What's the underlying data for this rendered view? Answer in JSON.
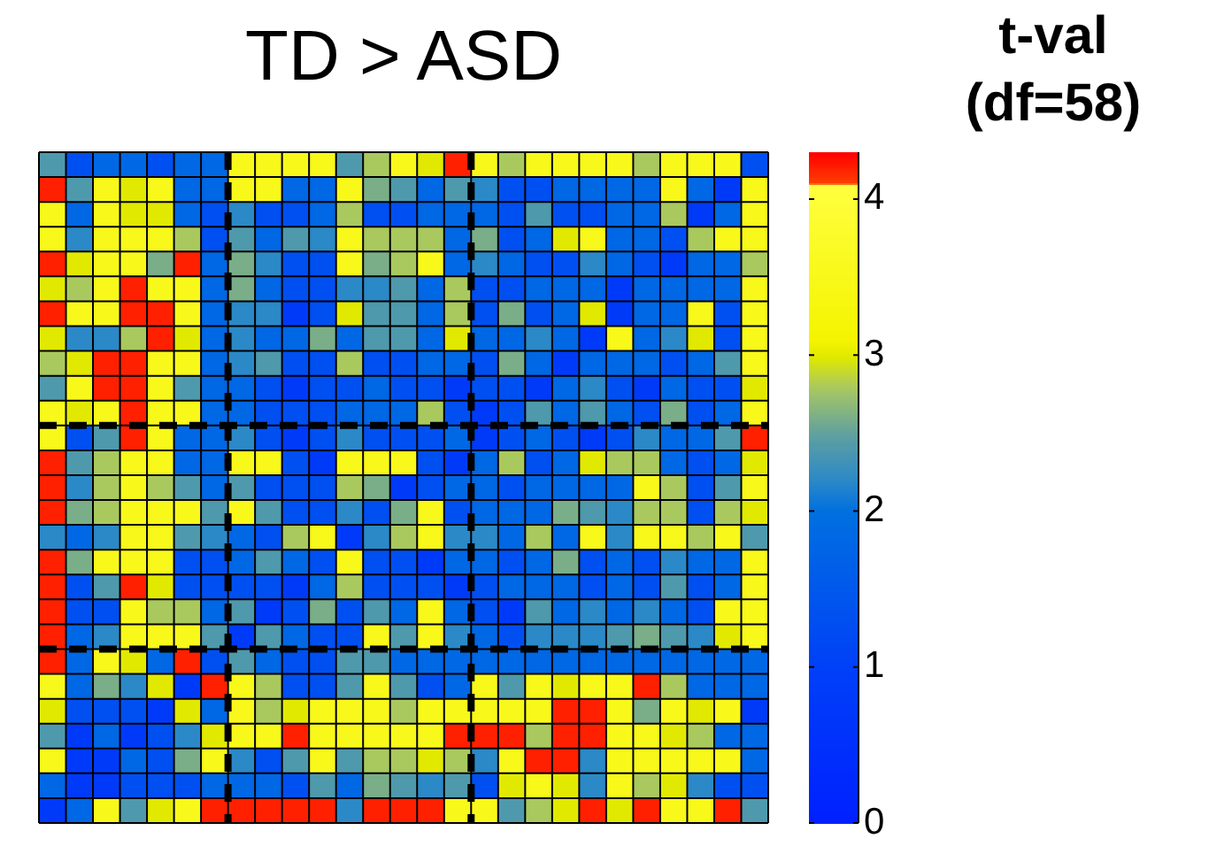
{
  "chart_data": {
    "type": "heatmap",
    "title": "TD > ASD",
    "clabel": "t-val (df=58)",
    "categories": [
      null,
      null,
      null,
      null,
      null,
      null,
      null,
      null,
      null,
      null,
      null,
      null,
      null,
      null,
      null,
      null,
      null,
      null,
      null,
      null,
      null,
      null,
      null,
      null,
      null,
      null,
      null
    ],
    "y_categories": [
      null,
      null,
      null,
      null,
      null,
      null,
      null,
      null,
      null,
      null,
      null,
      null,
      null,
      null,
      null,
      null,
      null,
      null,
      null,
      null,
      null,
      null,
      null,
      null,
      null,
      null,
      null
    ],
    "clim": [
      0,
      4.3
    ],
    "cticks": [
      0,
      1,
      2,
      3,
      4
    ],
    "cells": [
      [
        2.4,
        1.3,
        1.8,
        1.8,
        1.3,
        1.8,
        1.8,
        3.5,
        3.5,
        3.5,
        3.5,
        2.4,
        2.8,
        3.5,
        3,
        4.2,
        3.5,
        2.8,
        3.5,
        3.5,
        3.5,
        3.5,
        2.8,
        3.5,
        3.5,
        3.5,
        1.3
      ],
      [
        4.2,
        2.4,
        3.5,
        3,
        3.5,
        1.8,
        1.8,
        3.5,
        3.5,
        1.8,
        1.8,
        3.5,
        2.6,
        2.4,
        1.8,
        2.4,
        2.2,
        1.3,
        1.3,
        1.8,
        1.8,
        1.8,
        1.8,
        3.5,
        1.8,
        0.8,
        3.5
      ],
      [
        3.5,
        1.8,
        3.5,
        3,
        3,
        1.8,
        1.3,
        2.2,
        1.3,
        1.3,
        1.8,
        2.8,
        1.3,
        1.3,
        1.8,
        1.8,
        1.8,
        1.3,
        2.4,
        1.3,
        1.3,
        1.8,
        1.8,
        2.8,
        0.8,
        1.8,
        3.5
      ],
      [
        3.5,
        2.2,
        3.5,
        3.5,
        3.5,
        2.8,
        1.3,
        2.4,
        1.8,
        2.4,
        2.2,
        3.5,
        2.8,
        2.8,
        2.8,
        1.8,
        2.6,
        1.3,
        1.8,
        3,
        3.5,
        1.8,
        1.8,
        1.3,
        2.8,
        3.5,
        3.5
      ],
      [
        4.2,
        3,
        3.5,
        3.5,
        2.6,
        4.2,
        1.8,
        2.6,
        2.2,
        1.3,
        1.3,
        3.5,
        2.6,
        2.8,
        3.5,
        1.8,
        2.2,
        1.8,
        1.3,
        1.3,
        2.2,
        1.8,
        1.3,
        0.8,
        1.8,
        1.8,
        2.8
      ],
      [
        3,
        2.8,
        3.5,
        4.2,
        3.5,
        3.5,
        1.8,
        2.6,
        1.8,
        1.3,
        1.3,
        2.2,
        2.2,
        2.4,
        1.8,
        2.8,
        1.3,
        1.3,
        1.8,
        1.8,
        1.8,
        0.8,
        1.8,
        1.8,
        1.8,
        1.8,
        3.5
      ],
      [
        4.2,
        3.5,
        3.5,
        4.2,
        4.2,
        3.5,
        1.8,
        2.2,
        2.2,
        0.8,
        1.3,
        3,
        2.4,
        2.4,
        1.8,
        2.8,
        1.3,
        2.6,
        1.3,
        1.8,
        3,
        0.8,
        1.8,
        1.8,
        3.5,
        1.3,
        3.5
      ],
      [
        3,
        2.2,
        2.2,
        2.8,
        4.2,
        3,
        1.8,
        2.2,
        1.8,
        1.8,
        2.6,
        1.8,
        2.4,
        2.4,
        1.8,
        3,
        1.8,
        1.8,
        2.2,
        1.8,
        0.8,
        3.5,
        1.8,
        2.2,
        3,
        1.3,
        3.5
      ],
      [
        2.8,
        3,
        4.2,
        4.2,
        3.5,
        3.5,
        1.8,
        2.2,
        2.4,
        1.3,
        1.3,
        2.8,
        1.3,
        1.3,
        1.8,
        1.8,
        1.3,
        2.6,
        1.8,
        0.8,
        1.8,
        1.8,
        1.8,
        1.3,
        1.8,
        2.4,
        3.5
      ],
      [
        2.4,
        3.5,
        4.2,
        4.2,
        3.5,
        2.4,
        1.8,
        1.8,
        1.3,
        0.8,
        1.3,
        1.3,
        1.8,
        1.3,
        1.3,
        0.8,
        1.3,
        1.3,
        0.8,
        1.8,
        2.2,
        1.3,
        0.8,
        1.8,
        1.3,
        1.3,
        3
      ],
      [
        3.5,
        3,
        3.5,
        4.2,
        3.5,
        3.5,
        1.8,
        1.8,
        1.3,
        1.3,
        1.3,
        1.8,
        1.8,
        1.8,
        2.8,
        1.3,
        0.8,
        1.3,
        2.4,
        1.8,
        2.4,
        1.8,
        1.3,
        2.6,
        1.3,
        1.8,
        3.5
      ],
      [
        3.5,
        1.3,
        2.4,
        4.2,
        3.5,
        1.8,
        1.8,
        2.2,
        1.3,
        0.8,
        1.3,
        2.2,
        1.3,
        1.3,
        1.3,
        1.8,
        0.8,
        1.3,
        1.8,
        1.3,
        0.8,
        1.3,
        2.2,
        1.8,
        1.8,
        2.4,
        4.2
      ],
      [
        4.2,
        2.4,
        2.8,
        3.5,
        3.5,
        1.8,
        1.8,
        3.5,
        3.5,
        1.3,
        0.8,
        3.5,
        3.5,
        3.5,
        1.3,
        0.8,
        1.8,
        2.8,
        1.3,
        1.8,
        3,
        2.8,
        2.8,
        1.8,
        1.3,
        1.8,
        3
      ],
      [
        4.2,
        2.2,
        2.8,
        3.5,
        2.8,
        2.4,
        1.8,
        2.4,
        1.3,
        1.3,
        1.3,
        2.8,
        2.6,
        0.8,
        1.3,
        1.8,
        1.8,
        1.3,
        1.8,
        1.8,
        1.8,
        1.8,
        3.5,
        2.8,
        1.3,
        2.4,
        3.5
      ],
      [
        4.2,
        2.6,
        2.8,
        3.5,
        3.5,
        3.5,
        2.4,
        3.5,
        2.4,
        1.3,
        1.3,
        2.2,
        1.3,
        2.6,
        3.5,
        1.3,
        1.8,
        1.8,
        1.8,
        2.6,
        2.4,
        2.2,
        2.8,
        2.8,
        1.3,
        2.8,
        3
      ],
      [
        2.2,
        1.8,
        2.2,
        3.5,
        3.5,
        2.4,
        2.2,
        1.8,
        1.3,
        2.8,
        3.5,
        0.8,
        2.2,
        2.8,
        3.5,
        2.2,
        2.2,
        1.8,
        2.8,
        1.8,
        3.5,
        2.2,
        3.5,
        3.5,
        2.8,
        3.5,
        2.4
      ],
      [
        4.2,
        2.6,
        3.5,
        3.5,
        3.5,
        1.3,
        1.3,
        1.8,
        2.4,
        1.8,
        1.3,
        3.5,
        1.3,
        1.3,
        0.8,
        1.8,
        1.8,
        1.3,
        1.8,
        2.6,
        1.3,
        1.8,
        1.3,
        2.2,
        1.8,
        1.8,
        3.5
      ],
      [
        4.2,
        1.3,
        2.4,
        4.2,
        3,
        1.3,
        1.3,
        1.3,
        1.3,
        0.8,
        1.8,
        2.8,
        1.3,
        1.3,
        1.3,
        0.8,
        1.3,
        1.8,
        1.8,
        1.8,
        1.3,
        1.8,
        1.3,
        2.4,
        1.3,
        1.8,
        3.5
      ],
      [
        4.2,
        1.3,
        1.3,
        3.5,
        2.8,
        2.8,
        1.8,
        2.4,
        0.8,
        1.3,
        2.6,
        1.3,
        2.4,
        1.8,
        3.5,
        1.8,
        1.3,
        0.8,
        2.4,
        1.8,
        2.2,
        1.8,
        2.2,
        1.8,
        1.3,
        3.5,
        3.5
      ],
      [
        4.2,
        1.8,
        2.2,
        3.5,
        3.5,
        3.5,
        2.4,
        0.8,
        2.4,
        1.8,
        1.3,
        1.3,
        3.5,
        2.4,
        3.5,
        2.2,
        1.8,
        1.3,
        2.2,
        2.2,
        2.2,
        2.4,
        2.6,
        2.4,
        2.2,
        3,
        3.5
      ],
      [
        4.2,
        1.8,
        3.5,
        3,
        1.8,
        4.2,
        1.3,
        2.4,
        1.8,
        1.3,
        1.3,
        2.4,
        2.4,
        1.8,
        1.8,
        1.8,
        1.8,
        1.8,
        1.8,
        1.8,
        1.8,
        1.8,
        1.8,
        1.8,
        1.8,
        1.8,
        1.8
      ],
      [
        3.5,
        1.8,
        2.6,
        2.2,
        3,
        0.8,
        4.2,
        3.5,
        2.8,
        1.3,
        1.3,
        2.4,
        3.5,
        2.4,
        1.3,
        1.8,
        3.5,
        2.4,
        3.5,
        3,
        3.5,
        3.5,
        4.2,
        2.8,
        1.8,
        1.8,
        1.8
      ],
      [
        3,
        1.3,
        1.3,
        1.3,
        0.8,
        3,
        1.8,
        3.5,
        2.8,
        3,
        3.5,
        3.5,
        3.5,
        2.8,
        3.5,
        3.5,
        3.5,
        3.5,
        3.5,
        4.2,
        4.2,
        3.5,
        2.6,
        3.5,
        3,
        3.5,
        0.8
      ],
      [
        2.4,
        0.8,
        1.8,
        0.8,
        1.3,
        2.2,
        3,
        3.5,
        3.5,
        4.2,
        3.5,
        3.5,
        3.5,
        3.5,
        3.5,
        4.2,
        4.2,
        4.2,
        2.8,
        4.2,
        4.2,
        3.5,
        3.5,
        3,
        2.8,
        1.8,
        1.8
      ],
      [
        3.5,
        0.8,
        0.8,
        1.8,
        1.3,
        2.6,
        3.5,
        2.2,
        1.3,
        2.4,
        3.5,
        2.4,
        2.8,
        2.8,
        3,
        2.8,
        2.2,
        3.5,
        4.2,
        4.2,
        2.2,
        3.5,
        3.5,
        3.5,
        3.5,
        3.5,
        1.8
      ],
      [
        1.8,
        0.8,
        0.8,
        1.3,
        1.3,
        1.3,
        1.8,
        1.8,
        1.8,
        1.3,
        2.4,
        1.8,
        2.6,
        2.4,
        2.2,
        2.4,
        1.3,
        3,
        3.5,
        3,
        2.2,
        3.5,
        2.8,
        3,
        2.2,
        1.3,
        1.3
      ],
      [
        0.8,
        1.8,
        3.5,
        2.4,
        3,
        3.5,
        4.2,
        4.2,
        4.2,
        4.2,
        4.2,
        2.2,
        4.2,
        4.2,
        4.2,
        3.5,
        3.5,
        2.4,
        2.8,
        3,
        4.2,
        3,
        4.2,
        3.5,
        3.5,
        4.2,
        2.4
      ]
    ]
  }
}
